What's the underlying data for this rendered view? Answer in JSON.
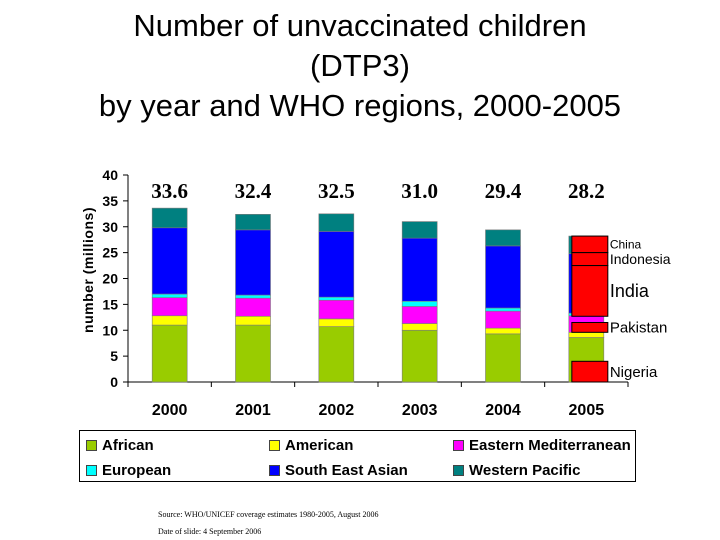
{
  "title": {
    "line1": "Number of unvaccinated children",
    "line2": "(DTP3)",
    "line3": "by year and WHO regions, 2000-2005"
  },
  "chart_data": {
    "type": "bar",
    "stacked": true,
    "ylabel": "number (millions)",
    "ylim": [
      0,
      40
    ],
    "yticks": [
      0,
      5,
      10,
      15,
      20,
      25,
      30,
      35,
      40
    ],
    "categories": [
      "2000",
      "2001",
      "2002",
      "2003",
      "2004",
      "2005"
    ],
    "totals": [
      "33.6",
      "32.4",
      "32.5",
      "31.0",
      "29.4",
      "28.2"
    ],
    "series": [
      {
        "name": "African",
        "color": "#99cc00",
        "values": [
          11.0,
          11.0,
          10.7,
          10.0,
          9.3,
          8.6
        ]
      },
      {
        "name": "American",
        "color": "#ffff00",
        "values": [
          1.8,
          1.7,
          1.5,
          1.3,
          1.1,
          1.0
        ]
      },
      {
        "name": "Eastern Mediterranean",
        "color": "#ff00ff",
        "values": [
          3.5,
          3.5,
          3.6,
          3.3,
          3.3,
          3.2
        ]
      },
      {
        "name": "European",
        "color": "#00ffff",
        "values": [
          0.7,
          0.6,
          0.6,
          1.0,
          0.6,
          0.5
        ]
      },
      {
        "name": "South East Asian",
        "color": "#0000ff",
        "values": [
          12.8,
          12.6,
          12.7,
          12.2,
          12.0,
          11.5
        ]
      },
      {
        "name": "Western Pacific",
        "color": "#008080",
        "values": [
          3.8,
          3.0,
          3.4,
          3.2,
          3.1,
          3.4
        ]
      }
    ],
    "legend": {
      "position": "bottom"
    },
    "annotations": [
      {
        "label": "China",
        "range": [
          25.0,
          28.2
        ],
        "size": 12
      },
      {
        "label": "Indonesia",
        "range": [
          22.5,
          25.0
        ],
        "size": 14
      },
      {
        "label": "India",
        "range": [
          12.7,
          22.5
        ],
        "size": 18
      },
      {
        "label": "Pakistan",
        "range": [
          9.6,
          11.5
        ],
        "size": 15
      },
      {
        "label": "Nigeria",
        "range": [
          0.0,
          4.0
        ],
        "size": 15
      }
    ],
    "annotation_color": "#ff0000"
  },
  "legend": {
    "items": [
      {
        "label": "African",
        "color": "#99cc00"
      },
      {
        "label": "American",
        "color": "#ffff00"
      },
      {
        "label": "Eastern Mediterranean",
        "color": "#ff00ff"
      },
      {
        "label": "European",
        "color": "#00ffff"
      },
      {
        "label": "South East Asian",
        "color": "#0000ff"
      },
      {
        "label": "Western Pacific",
        "color": "#008080"
      }
    ]
  },
  "notes": {
    "source": "Source: WHO/UNICEF coverage estimates 1980-2005, August 2006",
    "date": "Date of slide: 4 September 2006"
  }
}
